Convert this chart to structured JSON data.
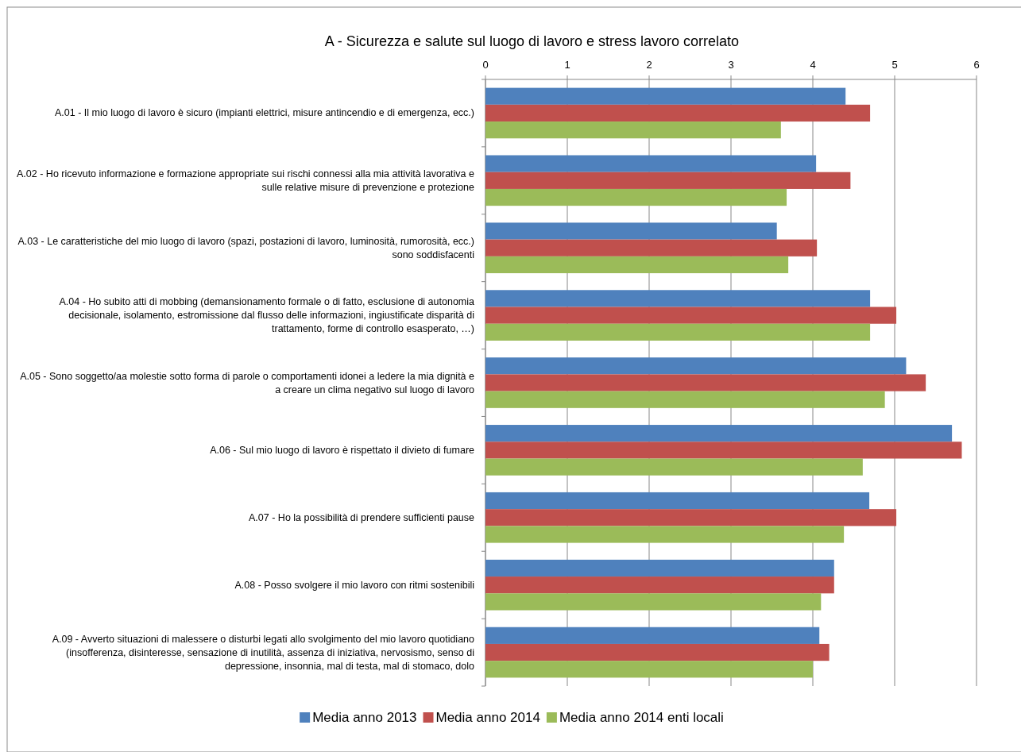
{
  "chart_data": {
    "type": "bar",
    "orientation": "horizontal",
    "title": "A - Sicurezza e salute sul luogo di lavoro e stress lavoro correlato",
    "categories": [
      "A.01 - Il mio luogo di lavoro è sicuro (impianti elettrici, misure antincendio e di emergenza, ecc.)",
      "A.02 - Ho ricevuto informazione e formazione appropriate sui rischi connessi alla mia attività lavorativa e sulle relative misure di prevenzione e protezione",
      "A.03 - Le caratteristiche del mio luogo di lavoro (spazi, postazioni di lavoro, luminosità, rumorosità, ecc.) sono soddisfacenti",
      "A.04 - Ho subito atti di mobbing (demansionamento formale o di fatto, esclusione di autonomia decisionale, isolamento, estromissione dal flusso delle informazioni, ingiustificate disparità di trattamento, forme di controllo esasperato, …)",
      "A.05 - Sono soggetto/aa molestie sotto forma di parole o comportamenti idonei a ledere la mia dignità e a creare un clima negativo sul luogo di lavoro",
      "A.06 - Sul mio luogo di lavoro è rispettato il divieto di fumare",
      "A.07 - Ho la possibilità di prendere sufficienti pause",
      "A.08 - Posso svolgere il mio lavoro con ritmi sostenibili",
      "A.09 - Avverto situazioni di malessere o disturbi legati allo svolgimento del mio lavoro quotidiano (insofferenza, disinteresse, sensazione di inutilità, assenza di iniziativa, nervosismo, senso di depressione, insonnia, mal di testa, mal di stomaco, dolo"
    ],
    "series": [
      {
        "name": "Media anno 2013",
        "color": "#4f81bd",
        "values": [
          4.4,
          4.04,
          3.56,
          4.7,
          5.14,
          5.7,
          4.69,
          4.26,
          4.08
        ]
      },
      {
        "name": "Media anno 2014",
        "color": "#c0504d",
        "values": [
          4.7,
          4.46,
          4.05,
          5.02,
          5.38,
          5.82,
          5.02,
          4.26,
          4.2
        ]
      },
      {
        "name": "Media anno 2014 enti locali",
        "color": "#9bbb59",
        "values": [
          3.61,
          3.68,
          3.7,
          4.7,
          4.88,
          4.61,
          4.38,
          4.1,
          4.0
        ]
      }
    ],
    "xlim": [
      0,
      6
    ],
    "xticks": [
      0,
      1,
      2,
      3,
      4,
      5,
      6
    ],
    "grid": "x",
    "legend": "bottom"
  }
}
